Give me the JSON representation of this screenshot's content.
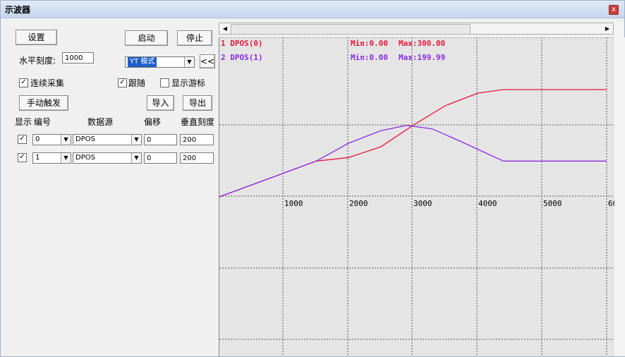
{
  "window": {
    "title": "示波器",
    "close_glyph": "x"
  },
  "controls": {
    "settings": "设置",
    "start": "启动",
    "stop": "停止",
    "horiz_scale_label": "水平刻度:",
    "horiz_scale_value": "1000",
    "mode_value": "YT 模式",
    "collapse": "<<",
    "continuous": "连续采集",
    "follow": "跟随",
    "show_cursor": "显示游标",
    "manual_trigger": "手动触发",
    "import": "导入",
    "export": "导出"
  },
  "columns": {
    "show": "显示",
    "number": "编号",
    "source": "数据源",
    "offset": "偏移",
    "vscale": "垂直刻度"
  },
  "channels": [
    {
      "checked": true,
      "number": "0",
      "source": "DPOS",
      "offset": "0",
      "vscale": "200"
    },
    {
      "checked": true,
      "number": "1",
      "source": "DPOS",
      "offset": "0",
      "vscale": "200"
    }
  ],
  "scope": {
    "legend": [
      {
        "name": "1 DPOS(0)",
        "min": "Min:0.00",
        "max": "Max:300.00",
        "color": "#e8173a"
      },
      {
        "name": "2 DPOS(1)",
        "min": "Min:0.00",
        "max": "Max:199.99",
        "color": "#8a2be2"
      }
    ],
    "x_ticks": [
      "1000",
      "2000",
      "3000",
      "4000",
      "5000",
      "60"
    ]
  },
  "chart_data": {
    "type": "line",
    "x_range": [
      0,
      6000
    ],
    "series": [
      {
        "name": "1 DPOS(0)",
        "color": "#e8173a",
        "x": [
          0,
          1500,
          2000,
          2500,
          3000,
          3500,
          4000,
          4400,
          6000
        ],
        "y": [
          0,
          100,
          110,
          140,
          200,
          255,
          290,
          300,
          300
        ]
      },
      {
        "name": "2 DPOS(1)",
        "color": "#8a2be2",
        "x": [
          0,
          1500,
          2000,
          2500,
          2900,
          3300,
          3800,
          4400,
          6000
        ],
        "y": [
          0,
          100,
          150,
          185,
          200,
          190,
          150,
          100,
          100
        ]
      }
    ]
  }
}
